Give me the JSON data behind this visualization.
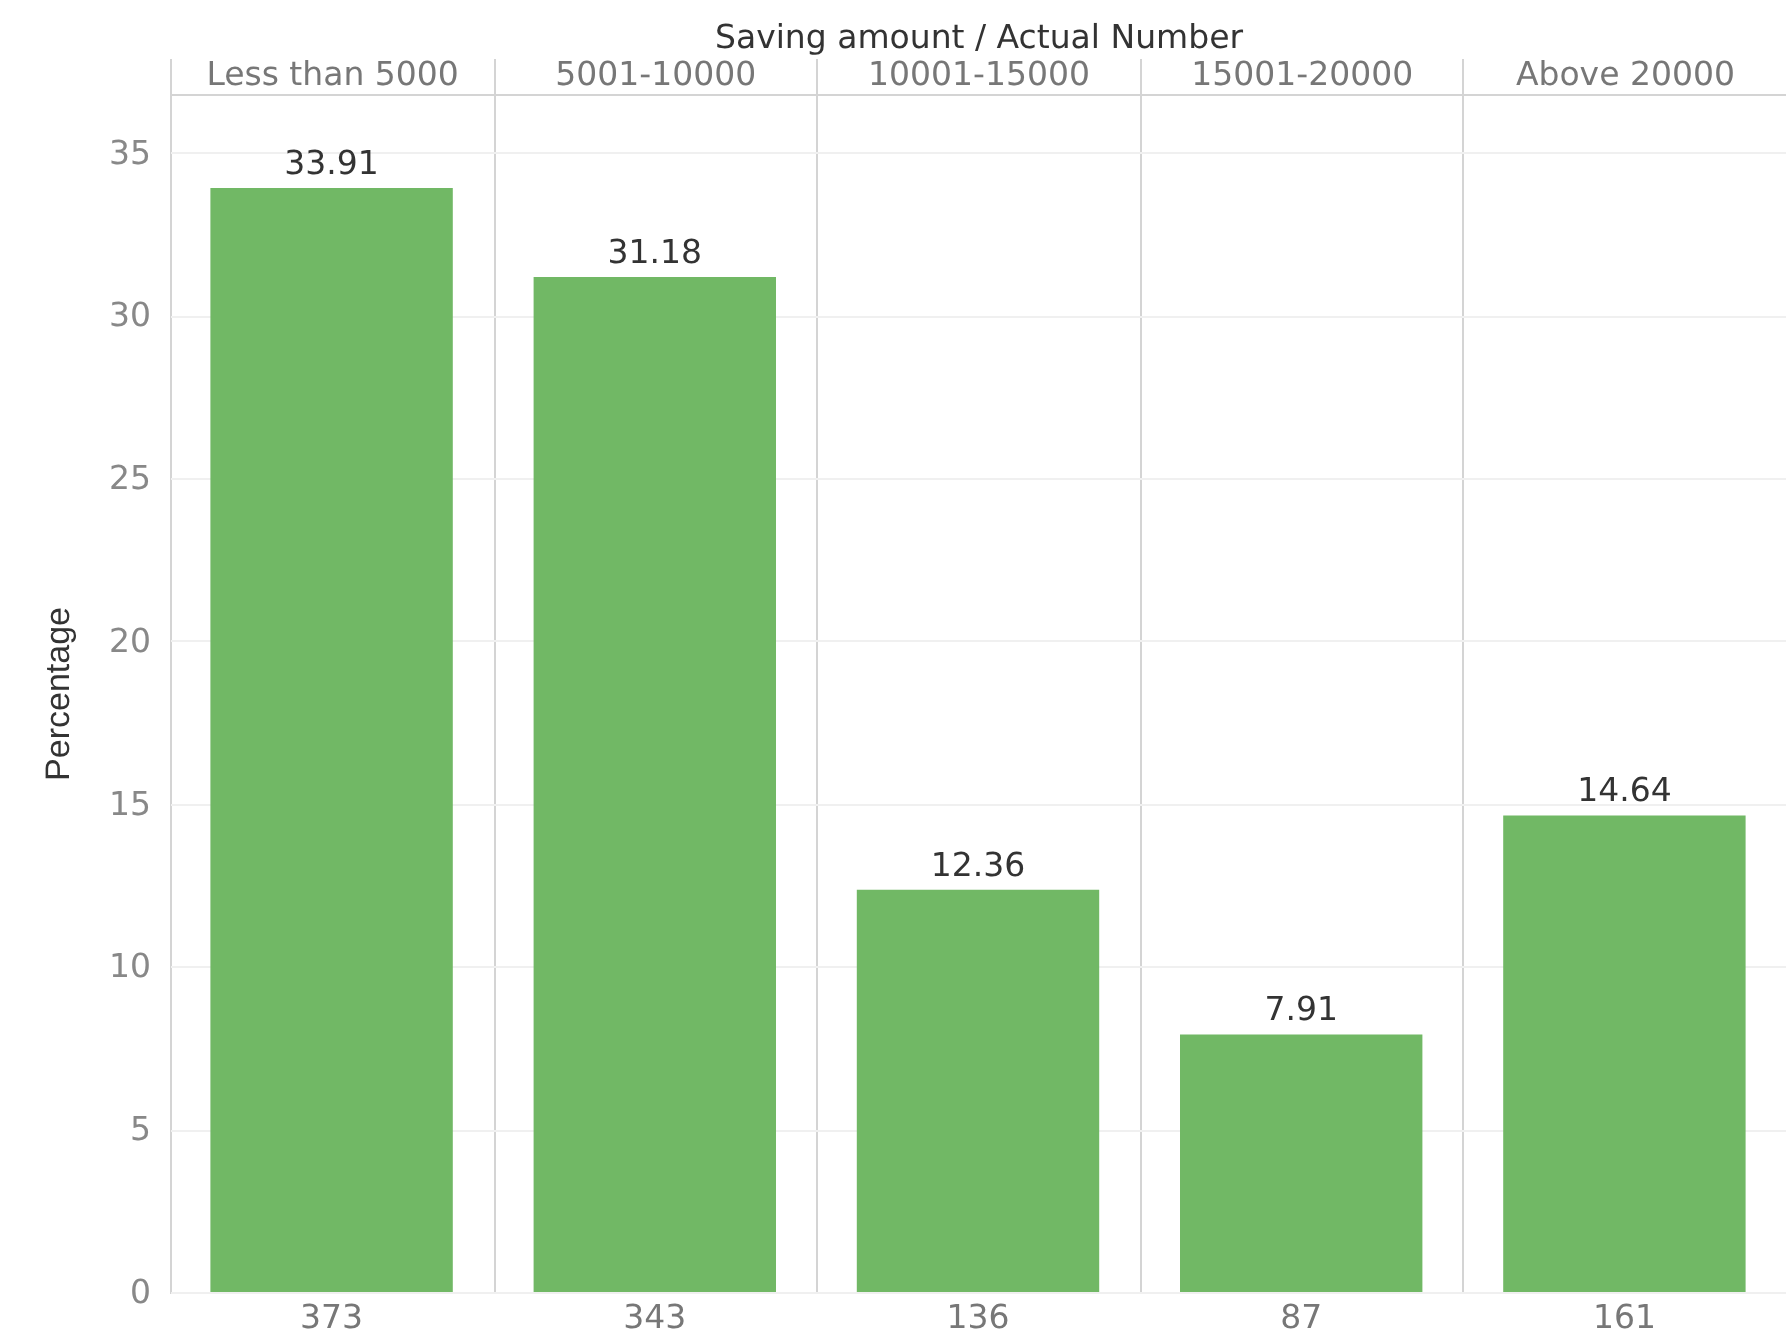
{
  "chart_data": {
    "type": "bar",
    "xlabel": "Saving amount / Actual Number",
    "ylabel": "Percentage",
    "categories": [
      "Less than 5000",
      "5001-10000",
      "10001-15000",
      "15001-20000",
      "Above 20000"
    ],
    "values": [
      33.91,
      31.18,
      12.36,
      7.91,
      14.64
    ],
    "color": "#71b865",
    "ylim": [
      0,
      36.8
    ],
    "yticks": [
      0,
      5,
      10,
      15,
      20,
      25,
      30,
      35
    ],
    "grid": true,
    "data_labels": true,
    "annotations": [
      "373",
      "343",
      "136",
      "87",
      "161"
    ]
  }
}
